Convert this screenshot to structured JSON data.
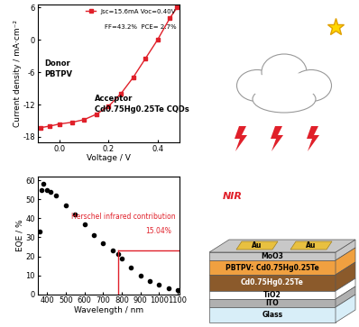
{
  "chart_data": [
    {
      "type": "line",
      "x_label": "Voltage / V",
      "y_label": "Current density / mA·cm⁻²",
      "xlim": [
        -0.09,
        0.49
      ],
      "xticks": [
        {
          "value": 0.0,
          "label": "0.0"
        },
        {
          "value": 0.2,
          "label": "0.2"
        },
        {
          "value": 0.4,
          "label": "0.4"
        }
      ],
      "ylim": [
        -19,
        6.5
      ],
      "yticks": [
        6,
        0,
        -6,
        -12,
        -18
      ],
      "legend": "upper right",
      "x": [
        -0.08,
        -0.04,
        0.0,
        0.05,
        0.1,
        0.15,
        0.2,
        0.25,
        0.3,
        0.35,
        0.4,
        0.45,
        0.48
      ],
      "series": [
        {
          "name": "Jsc=15.6mA Voc=0.40V",
          "color": "#e0202a",
          "marker": "s",
          "values": [
            -16.3,
            -16.0,
            -15.6,
            -15.3,
            -14.8,
            -13.8,
            -12.3,
            -10.0,
            -7.0,
            -3.5,
            0.0,
            4.0,
            6.0
          ]
        }
      ],
      "annotations": [
        "FF=43.2%  PCE= 2.7%",
        "Donor",
        "PBTPV",
        "Acceptor",
        "Cd0.75Hg0.25Te CQDs"
      ]
    },
    {
      "type": "scatter",
      "x_label": "Wavelength / nm",
      "y_label": "EQE / %",
      "xlim": [
        350,
        1110
      ],
      "xticks": [
        400,
        500,
        600,
        700,
        800,
        900,
        1000,
        1100
      ],
      "ylim": [
        0,
        62
      ],
      "yticks": [
        0,
        10,
        20,
        30,
        40,
        50,
        60
      ],
      "x": [
        360,
        370,
        380,
        400,
        420,
        450,
        500,
        550,
        600,
        650,
        700,
        750,
        780,
        800,
        850,
        900,
        950,
        1000,
        1050,
        1100
      ],
      "series": [
        {
          "color": "#000000",
          "marker": "o",
          "values": [
            33,
            55,
            58,
            55,
            54,
            52,
            47,
            42,
            37,
            31,
            27,
            23,
            21,
            19,
            14,
            10,
            7,
            5,
            3,
            2
          ]
        }
      ],
      "cutoff": {
        "x": 780,
        "y": 23,
        "color": "#e0202a"
      },
      "annotations": [
        "Herschel infrared contribution",
        "15.04%"
      ]
    }
  ],
  "diagram": {
    "label": "NIR",
    "electrodes": [
      "Au",
      "Au"
    ],
    "layers": [
      "MoO3",
      "PBTPV: Cd0.75Hg0.25Te",
      "Cd0.75Hg0.25Te",
      "TiO2",
      "ITO",
      "Glass"
    ]
  }
}
